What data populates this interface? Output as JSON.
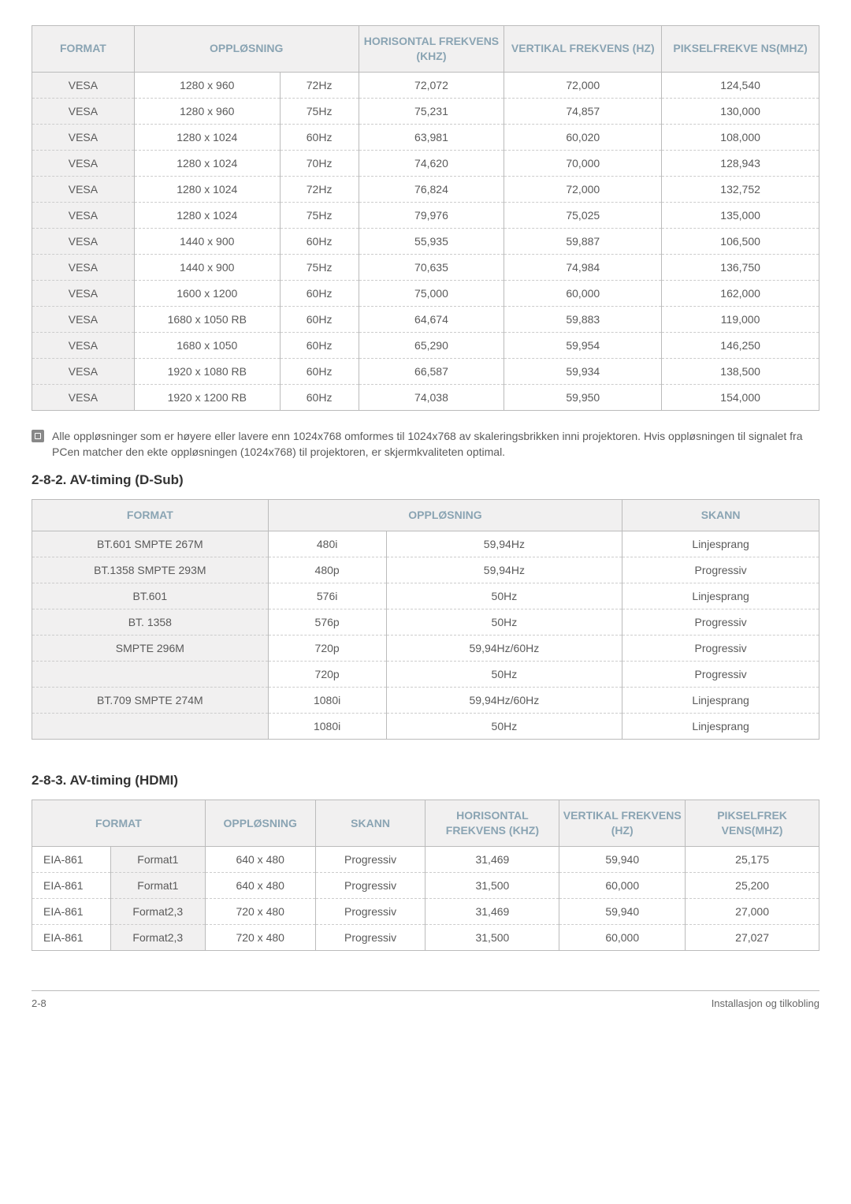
{
  "table1": {
    "headers": {
      "format": "FORMAT",
      "opplosning": "OPPLØSNING",
      "horisontal": "HORISONTAL FREKVENS (KHZ)",
      "vertikal": "VERTIKAL FREKVENS (HZ)",
      "piksel": "PIKSELFREKVE NS(MHZ)"
    },
    "rows": [
      {
        "f": "VESA",
        "r": "1280 x 960",
        "hz": "72Hz",
        "h": "72,072",
        "v": "72,000",
        "p": "124,540"
      },
      {
        "f": "VESA",
        "r": "1280 x 960",
        "hz": "75Hz",
        "h": "75,231",
        "v": "74,857",
        "p": "130,000"
      },
      {
        "f": "VESA",
        "r": "1280 x 1024",
        "hz": "60Hz",
        "h": "63,981",
        "v": "60,020",
        "p": "108,000"
      },
      {
        "f": "VESA",
        "r": "1280 x 1024",
        "hz": "70Hz",
        "h": "74,620",
        "v": "70,000",
        "p": "128,943"
      },
      {
        "f": "VESA",
        "r": "1280 x 1024",
        "hz": "72Hz",
        "h": "76,824",
        "v": "72,000",
        "p": "132,752"
      },
      {
        "f": "VESA",
        "r": "1280 x 1024",
        "hz": "75Hz",
        "h": "79,976",
        "v": "75,025",
        "p": "135,000"
      },
      {
        "f": "VESA",
        "r": "1440 x 900",
        "hz": "60Hz",
        "h": "55,935",
        "v": "59,887",
        "p": "106,500"
      },
      {
        "f": "VESA",
        "r": "1440 x 900",
        "hz": "75Hz",
        "h": "70,635",
        "v": "74,984",
        "p": "136,750"
      },
      {
        "f": "VESA",
        "r": "1600 x 1200",
        "hz": "60Hz",
        "h": "75,000",
        "v": "60,000",
        "p": "162,000"
      },
      {
        "f": "VESA",
        "r": "1680 x 1050 RB",
        "hz": "60Hz",
        "h": "64,674",
        "v": "59,883",
        "p": "119,000"
      },
      {
        "f": "VESA",
        "r": "1680 x 1050",
        "hz": "60Hz",
        "h": "65,290",
        "v": "59,954",
        "p": "146,250"
      },
      {
        "f": "VESA",
        "r": "1920 x 1080 RB",
        "hz": "60Hz",
        "h": "66,587",
        "v": "59,934",
        "p": "138,500"
      },
      {
        "f": "VESA",
        "r": "1920 x 1200 RB",
        "hz": "60Hz",
        "h": "74,038",
        "v": "59,950",
        "p": "154,000"
      }
    ]
  },
  "note": "Alle oppløsninger som er høyere eller lavere enn 1024x768 omformes til 1024x768 av skaleringsbrikken inni projektoren. Hvis oppløsningen til signalet fra PCen matcher den ekte oppløsningen (1024x768) til projektoren, er skjermkvaliteten optimal.",
  "section2": "2-8-2. AV-timing (D-Sub)",
  "table2": {
    "headers": {
      "format": "FORMAT",
      "opplosning": "OPPLØSNING",
      "skann": "SKANN"
    },
    "rows": [
      {
        "f": "BT.601 SMPTE 267M",
        "r": "480i",
        "hz": "59,94Hz",
        "s": "Linjesprang"
      },
      {
        "f": "BT.1358 SMPTE 293M",
        "r": "480p",
        "hz": "59,94Hz",
        "s": "Progressiv"
      },
      {
        "f": "BT.601",
        "r": "576i",
        "hz": "50Hz",
        "s": "Linjesprang"
      },
      {
        "f": "BT. 1358",
        "r": "576p",
        "hz": "50Hz",
        "s": "Progressiv"
      },
      {
        "f": "SMPTE 296M",
        "r": "720p",
        "hz": "59,94Hz/60Hz",
        "s": "Progressiv"
      },
      {
        "f": "",
        "r": "720p",
        "hz": "50Hz",
        "s": "Progressiv"
      },
      {
        "f": "BT.709 SMPTE 274M",
        "r": "1080i",
        "hz": "59,94Hz/60Hz",
        "s": "Linjesprang"
      },
      {
        "f": "",
        "r": "1080i",
        "hz": "50Hz",
        "s": "Linjesprang"
      }
    ]
  },
  "section3": "2-8-3. AV-timing (HDMI)",
  "table3": {
    "headers": {
      "format": "FORMAT",
      "opplosning": "OPPLØSNING",
      "skann": "SKANN",
      "horisontal": "HORISONTAL FREKVENS (KHZ)",
      "vertikal": "VERTIKAL FREKVENS (HZ)",
      "piksel": "PIKSELFREK VENS(MHZ)"
    },
    "rows": [
      {
        "f1": "EIA-861",
        "f2": "Format1",
        "r": "640 x 480",
        "s": "Progressiv",
        "h": "31,469",
        "v": "59,940",
        "p": "25,175"
      },
      {
        "f1": "EIA-861",
        "f2": "Format1",
        "r": "640 x 480",
        "s": "Progressiv",
        "h": "31,500",
        "v": "60,000",
        "p": "25,200"
      },
      {
        "f1": "EIA-861",
        "f2": "Format2,3",
        "r": "720 x 480",
        "s": "Progressiv",
        "h": "31,469",
        "v": "59,940",
        "p": "27,000"
      },
      {
        "f1": "EIA-861",
        "f2": "Format2,3",
        "r": "720 x 480",
        "s": "Progressiv",
        "h": "31,500",
        "v": "60,000",
        "p": "27,027"
      }
    ]
  },
  "footer": {
    "left": "2-8",
    "right": "Installasjon og tilkobling"
  }
}
